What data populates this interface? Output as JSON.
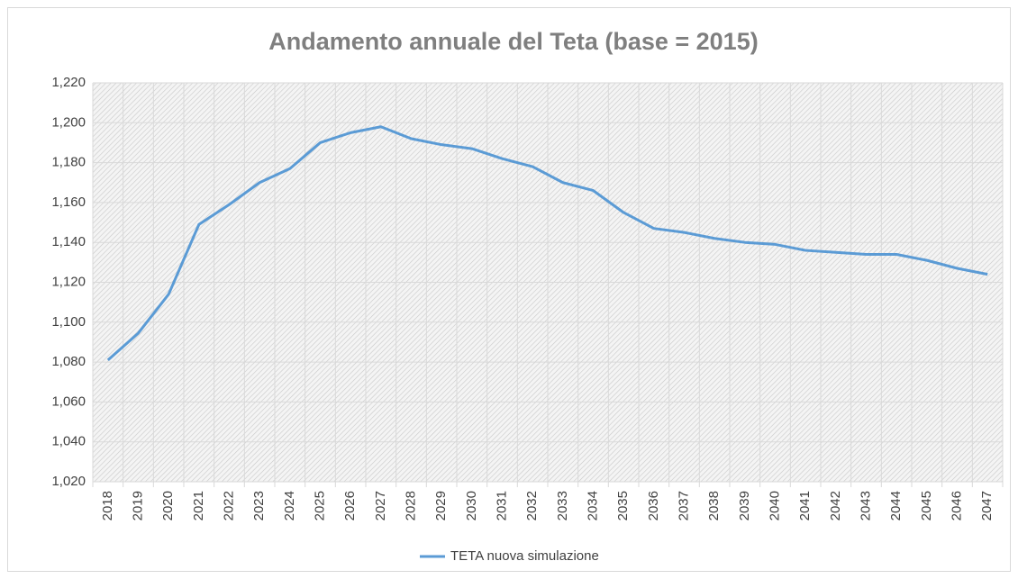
{
  "chart_data": {
    "type": "line",
    "title": "Andamento annuale del Teta (base = 2015)",
    "categories": [
      "2018",
      "2019",
      "2020",
      "2021",
      "2022",
      "2023",
      "2024",
      "2025",
      "2026",
      "2027",
      "2028",
      "2029",
      "2030",
      "2031",
      "2032",
      "2033",
      "2034",
      "2035",
      "2036",
      "2037",
      "2038",
      "2039",
      "2040",
      "2041",
      "2042",
      "2043",
      "2044",
      "2045",
      "2046",
      "2047"
    ],
    "series": [
      {
        "name": "TETA nuova simulazione",
        "color": "#5b9bd5",
        "values": [
          1.081,
          1.0945,
          1.114,
          1.149,
          1.159,
          1.17,
          1.177,
          1.19,
          1.195,
          1.198,
          1.192,
          1.189,
          1.187,
          1.182,
          1.178,
          1.17,
          1.166,
          1.155,
          1.147,
          1.145,
          1.142,
          1.14,
          1.139,
          1.136,
          1.135,
          1.134,
          1.134,
          1.131,
          1.127,
          1.124
        ]
      }
    ],
    "ylim": [
      1.02,
      1.22
    ],
    "yticks": [
      {
        "value": 1.02,
        "label": "1,020"
      },
      {
        "value": 1.04,
        "label": "1,040"
      },
      {
        "value": 1.06,
        "label": "1,060"
      },
      {
        "value": 1.08,
        "label": "1,080"
      },
      {
        "value": 1.1,
        "label": "1,100"
      },
      {
        "value": 1.12,
        "label": "1,120"
      },
      {
        "value": 1.14,
        "label": "1,140"
      },
      {
        "value": 1.16,
        "label": "1,160"
      },
      {
        "value": 1.18,
        "label": "1,180"
      },
      {
        "value": 1.2,
        "label": "1,200"
      },
      {
        "value": 1.22,
        "label": "1,220"
      }
    ],
    "grid": true,
    "legend": "bottom"
  }
}
